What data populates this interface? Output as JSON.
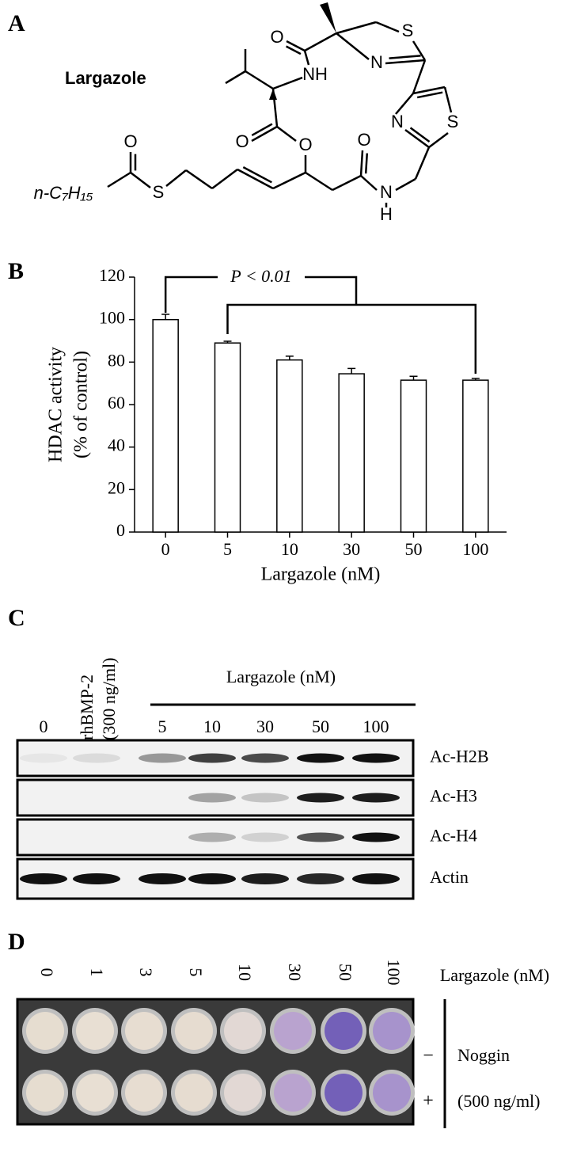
{
  "panel_a": {
    "label": "A",
    "compound": "Largazole",
    "atoms": [
      "O",
      "NH",
      "S",
      "N",
      "N",
      "S",
      "O",
      "N",
      "H",
      "O",
      "O",
      "O",
      "S",
      "n-C₇H₁₅"
    ]
  },
  "chart_data": {
    "type": "bar",
    "panel_label": "B",
    "categories": [
      "0",
      "5",
      "10",
      "30",
      "50",
      "100"
    ],
    "values": [
      100,
      89,
      81,
      74.5,
      71.5,
      71.5
    ],
    "errors": [
      2.5,
      0.8,
      1.8,
      2.5,
      1.8,
      0.8
    ],
    "color": "#ffffff",
    "ylim": [
      0,
      120
    ],
    "yticks": [
      0,
      20,
      40,
      60,
      80,
      100,
      120
    ],
    "xlabel": "Largazole (nM)",
    "ylabel": [
      "HDAC activity",
      "(% of control)"
    ],
    "annotation": "P < 0.01"
  },
  "panel_c": {
    "label": "C",
    "control_lane": "0",
    "rhbmp2_label": [
      "rhBMP-2",
      "(300 ng/ml)"
    ],
    "treatment_label": "Largazole (nM)",
    "treatment_lanes": [
      "5",
      "10",
      "30",
      "50",
      "100"
    ],
    "rows": [
      "Ac-H2B",
      "Ac-H3",
      "Ac-H4",
      "Actin"
    ]
  },
  "panel_d": {
    "label": "D",
    "lanes": [
      "0",
      "1",
      "3",
      "5",
      "10",
      "30",
      "50",
      "100"
    ],
    "treatment_label": "Largazole (nM)",
    "rows": [
      "−",
      "+"
    ],
    "row_group": [
      "Noggin",
      "(500 ng/ml)"
    ]
  }
}
